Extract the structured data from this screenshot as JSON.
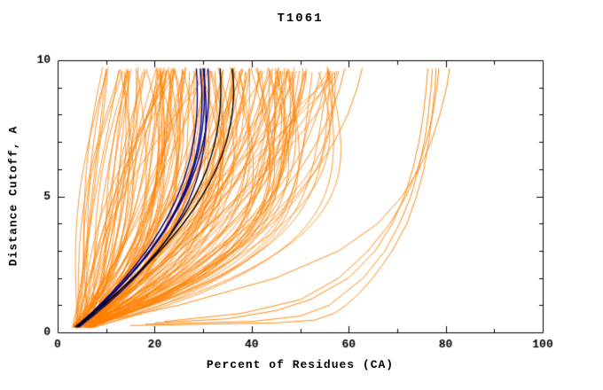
{
  "chart_data": {
    "type": "line",
    "title": "T1061",
    "xlabel": "Percent of Residues (CA)",
    "ylabel": "Distance Cutoff, A",
    "xlim": [
      0,
      100
    ],
    "ylim": [
      0,
      10
    ],
    "x_major_ticks": [
      0,
      20,
      40,
      60,
      80,
      100
    ],
    "x_minor_step": 10,
    "y_major_ticks": [
      0,
      5,
      10
    ],
    "y_minor_step": 1,
    "grid": false,
    "legend": false,
    "colors": {
      "background": "#ffffff",
      "axis": "#000000",
      "ensemble": "#ff8000",
      "cluster": "#000080",
      "reference": "#000000"
    },
    "series_description": {
      "ensemble": "Dense fan of ~150 orange per-model accuracy curves: percent of CA residues under each distance cutoff; most reach 9-58% at 10 A",
      "cluster": "Bundle of overlapping dark navy consensus curves reaching about 29-31% at 10 A",
      "reference": "Black curves tracking the navy bundle, reaching about 34-36% at 10 A",
      "outliers": "Separated orange curves on the right reaching about 59-81% at 10 A"
    },
    "ensemble_model": {
      "count": 150,
      "seed": 1061,
      "start_percent": [
        3,
        7.5
      ],
      "end_percent": [
        9,
        58
      ],
      "start_cutoff": [
        0.15,
        0.3
      ],
      "end_cutoff": [
        9.55,
        9.75
      ],
      "shape_exponent": [
        0.9,
        4.8
      ],
      "bow_amplitude": 5.5
    },
    "cluster_curves": [
      {
        "start": 3.8,
        "end": 28.6,
        "shape": 2.3,
        "bow": 1.0
      },
      {
        "start": 4.2,
        "end": 29.4,
        "shape": 2.2,
        "bow": 1.6
      },
      {
        "start": 3.6,
        "end": 30.2,
        "shape": 2.4,
        "bow": 0.6
      },
      {
        "start": 4.0,
        "end": 31.0,
        "shape": 2.1,
        "bow": 1.2
      },
      {
        "start": 4.4,
        "end": 30.0,
        "shape": 2.5,
        "bow": 1.8
      }
    ],
    "reference_curves": [
      {
        "start": 3.7,
        "end": 36.0,
        "shape": 1.9,
        "bow": 2.2
      },
      {
        "start": 4.0,
        "end": 33.5,
        "shape": 2.2,
        "bow": 1.0
      }
    ],
    "outlier_curves": [
      {
        "points": [
          [
            0.25,
            15
          ],
          [
            0.3,
            30
          ],
          [
            0.35,
            45
          ],
          [
            0.45,
            53
          ],
          [
            0.7,
            57
          ],
          [
            1,
            59.5
          ],
          [
            1.5,
            62.5
          ],
          [
            2,
            65
          ],
          [
            2.5,
            67
          ],
          [
            3,
            69
          ],
          [
            4,
            72
          ],
          [
            5,
            74
          ],
          [
            6,
            75.5
          ],
          [
            7,
            76.5
          ],
          [
            8,
            77.2
          ],
          [
            9,
            77.8
          ],
          [
            9.7,
            78
          ]
        ]
      },
      {
        "points": [
          [
            0.3,
            18
          ],
          [
            0.4,
            40
          ],
          [
            0.6,
            50
          ],
          [
            1,
            56
          ],
          [
            2,
            63
          ],
          [
            3,
            67.5
          ],
          [
            4,
            70.5
          ],
          [
            5,
            72.8
          ],
          [
            6,
            74.4
          ],
          [
            7,
            75.6
          ],
          [
            8,
            76.4
          ],
          [
            9,
            77
          ],
          [
            9.7,
            77.3
          ]
        ]
      },
      {
        "points": [
          [
            0.35,
            20
          ],
          [
            0.5,
            35
          ],
          [
            0.8,
            45
          ],
          [
            1.2,
            52
          ],
          [
            2,
            60
          ],
          [
            3,
            65.5
          ],
          [
            4,
            69
          ],
          [
            5,
            71.5
          ],
          [
            6,
            73.2
          ],
          [
            7,
            74.5
          ],
          [
            8,
            75.4
          ],
          [
            9,
            76
          ],
          [
            9.7,
            76.3
          ]
        ]
      },
      {
        "points": [
          [
            0.4,
            22
          ],
          [
            0.7,
            38
          ],
          [
            1.2,
            50
          ],
          [
            2,
            58
          ],
          [
            3,
            64
          ],
          [
            4,
            68.5
          ],
          [
            5,
            71.8
          ],
          [
            6,
            74.2
          ],
          [
            7,
            76
          ],
          [
            8,
            77.3
          ],
          [
            9,
            78.2
          ],
          [
            9.7,
            78.6
          ]
        ]
      },
      {
        "points": [
          [
            0.5,
            12
          ],
          [
            1,
            25
          ],
          [
            2,
            45
          ],
          [
            3,
            58
          ],
          [
            4,
            66
          ],
          [
            5,
            71
          ],
          [
            6,
            74.5
          ],
          [
            7,
            77
          ],
          [
            8,
            78.8
          ],
          [
            9,
            80.2
          ],
          [
            9.7,
            80.8
          ]
        ]
      },
      {
        "points": [
          [
            0.3,
            8
          ],
          [
            1,
            16
          ],
          [
            2,
            25
          ],
          [
            3,
            33
          ],
          [
            4,
            40
          ],
          [
            5,
            45.5
          ],
          [
            6,
            50
          ],
          [
            7,
            53.5
          ],
          [
            8,
            56.2
          ],
          [
            9,
            58.2
          ],
          [
            9.7,
            59.2
          ]
        ]
      },
      {
        "points": [
          [
            0.3,
            9
          ],
          [
            1,
            18
          ],
          [
            2,
            28
          ],
          [
            3,
            36.5
          ],
          [
            4,
            43.5
          ],
          [
            5,
            49
          ],
          [
            6,
            53.5
          ],
          [
            7,
            57
          ],
          [
            8,
            59.8
          ],
          [
            9,
            61.8
          ],
          [
            9.7,
            62.8
          ]
        ]
      }
    ]
  }
}
